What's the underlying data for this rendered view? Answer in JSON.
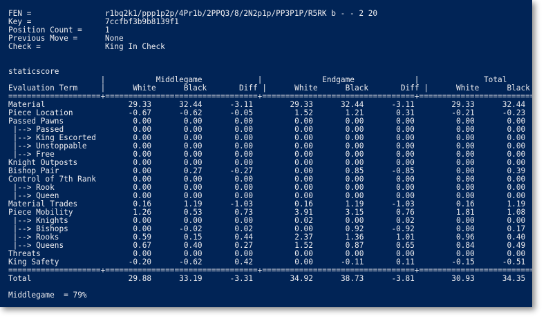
{
  "header": [
    {
      "label": "FEN =",
      "value": "r1bq2k1/ppp1p2p/4Pr1b/2PPQ3/8/2N2p1p/PP3P1P/R5RK b - - 2 20"
    },
    {
      "label": "Key =",
      "value": "7ccfbf3b9b8139f1"
    },
    {
      "label": "Position Count =",
      "value": "1"
    },
    {
      "label": "Previous Move =",
      "value": "None"
    },
    {
      "label": "Check =",
      "value": "King In Check"
    }
  ],
  "section_title": "staticscore",
  "table": {
    "groups": [
      "Middlegame",
      "Endgame",
      "Total"
    ],
    "term_header": "Evaluation Term",
    "columns": [
      "White",
      "Black",
      "Diff"
    ],
    "rows": [
      {
        "term": "Material",
        "values": [
          "29.33",
          "32.44",
          "-3.11",
          "29.33",
          "32.44",
          "-3.11",
          "29.33",
          "32.44",
          "-3.11"
        ]
      },
      {
        "term": "Piece Location",
        "values": [
          "-0.67",
          "-0.62",
          "-0.05",
          "1.52",
          "1.21",
          "0.31",
          "-0.21",
          "-0.23",
          "0.02"
        ]
      },
      {
        "term": "Passed Pawns",
        "values": [
          "0.00",
          "0.00",
          "0.00",
          "0.00",
          "0.00",
          "0.00",
          "0.00",
          "0.00",
          "0.00"
        ]
      },
      {
        "term": " |--> Passed",
        "values": [
          "0.00",
          "0.00",
          "0.00",
          "0.00",
          "0.00",
          "0.00",
          "0.00",
          "0.00",
          "0.00"
        ]
      },
      {
        "term": " |--> King Escorted",
        "values": [
          "0.00",
          "0.00",
          "0.00",
          "0.00",
          "0.00",
          "0.00",
          "0.00",
          "0.00",
          "0.00"
        ]
      },
      {
        "term": " |--> Unstoppable",
        "values": [
          "0.00",
          "0.00",
          "0.00",
          "0.00",
          "0.00",
          "0.00",
          "0.00",
          "0.00",
          "0.00"
        ]
      },
      {
        "term": " |--> Free",
        "values": [
          "0.00",
          "0.00",
          "0.00",
          "0.00",
          "0.00",
          "0.00",
          "0.00",
          "0.00",
          "0.00"
        ]
      },
      {
        "term": "Knight Outposts",
        "values": [
          "0.00",
          "0.00",
          "0.00",
          "0.00",
          "0.00",
          "0.00",
          "0.00",
          "0.00",
          "0.00"
        ]
      },
      {
        "term": "Bishop Pair",
        "values": [
          "0.00",
          "0.27",
          "-0.27",
          "0.00",
          "0.85",
          "-0.85",
          "0.00",
          "0.39",
          "-0.39"
        ]
      },
      {
        "term": "Control of 7th Rank",
        "values": [
          "0.00",
          "0.00",
          "0.00",
          "0.00",
          "0.00",
          "0.00",
          "0.00",
          "0.00",
          "0.00"
        ]
      },
      {
        "term": " |--> Rook",
        "values": [
          "0.00",
          "0.00",
          "0.00",
          "0.00",
          "0.00",
          "0.00",
          "0.00",
          "0.00",
          "0.00"
        ]
      },
      {
        "term": " |--> Queen",
        "values": [
          "0.00",
          "0.00",
          "0.00",
          "0.00",
          "0.00",
          "0.00",
          "0.00",
          "0.00",
          "0.00"
        ]
      },
      {
        "term": "Material Trades",
        "values": [
          "0.16",
          "1.19",
          "-1.03",
          "0.16",
          "1.19",
          "-1.03",
          "0.16",
          "1.19",
          "-1.03"
        ]
      },
      {
        "term": "Piece Mobility",
        "values": [
          "1.26",
          "0.53",
          "0.73",
          "3.91",
          "3.15",
          "0.76",
          "1.81",
          "1.08",
          "0.73"
        ]
      },
      {
        "term": " |--> Knights",
        "values": [
          "0.00",
          "0.00",
          "0.00",
          "0.02",
          "0.00",
          "0.02",
          "0.00",
          "0.00",
          "0.00"
        ]
      },
      {
        "term": " |--> Bishops",
        "values": [
          "0.00",
          "-0.02",
          "0.02",
          "0.00",
          "0.92",
          "-0.92",
          "0.00",
          "0.17",
          "-0.17"
        ]
      },
      {
        "term": " |--> Rooks",
        "values": [
          "0.59",
          "0.15",
          "0.44",
          "2.37",
          "1.36",
          "1.01",
          "0.96",
          "0.40",
          "0.56"
        ]
      },
      {
        "term": " |--> Queens",
        "values": [
          "0.67",
          "0.40",
          "0.27",
          "1.52",
          "0.87",
          "0.65",
          "0.84",
          "0.49",
          "0.35"
        ]
      },
      {
        "term": "Threats",
        "values": [
          "0.00",
          "0.00",
          "0.00",
          "0.00",
          "0.00",
          "0.00",
          "0.00",
          "0.00",
          "0.00"
        ]
      },
      {
        "term": "King Safety",
        "values": [
          "-0.20",
          "-0.62",
          "0.42",
          "0.00",
          "-0.11",
          "0.11",
          "-0.15",
          "-0.51",
          "0.36"
        ]
      }
    ],
    "total": {
      "term": "Total",
      "values": [
        "29.88",
        "33.19",
        "-3.31",
        "34.92",
        "38.73",
        "-3.81",
        "30.93",
        "34.35",
        "-3.42"
      ]
    }
  },
  "phase_label": "Middlegame",
  "phase_value": "79%",
  "colors": {
    "background": "#012456",
    "text": "#eeedf0"
  }
}
